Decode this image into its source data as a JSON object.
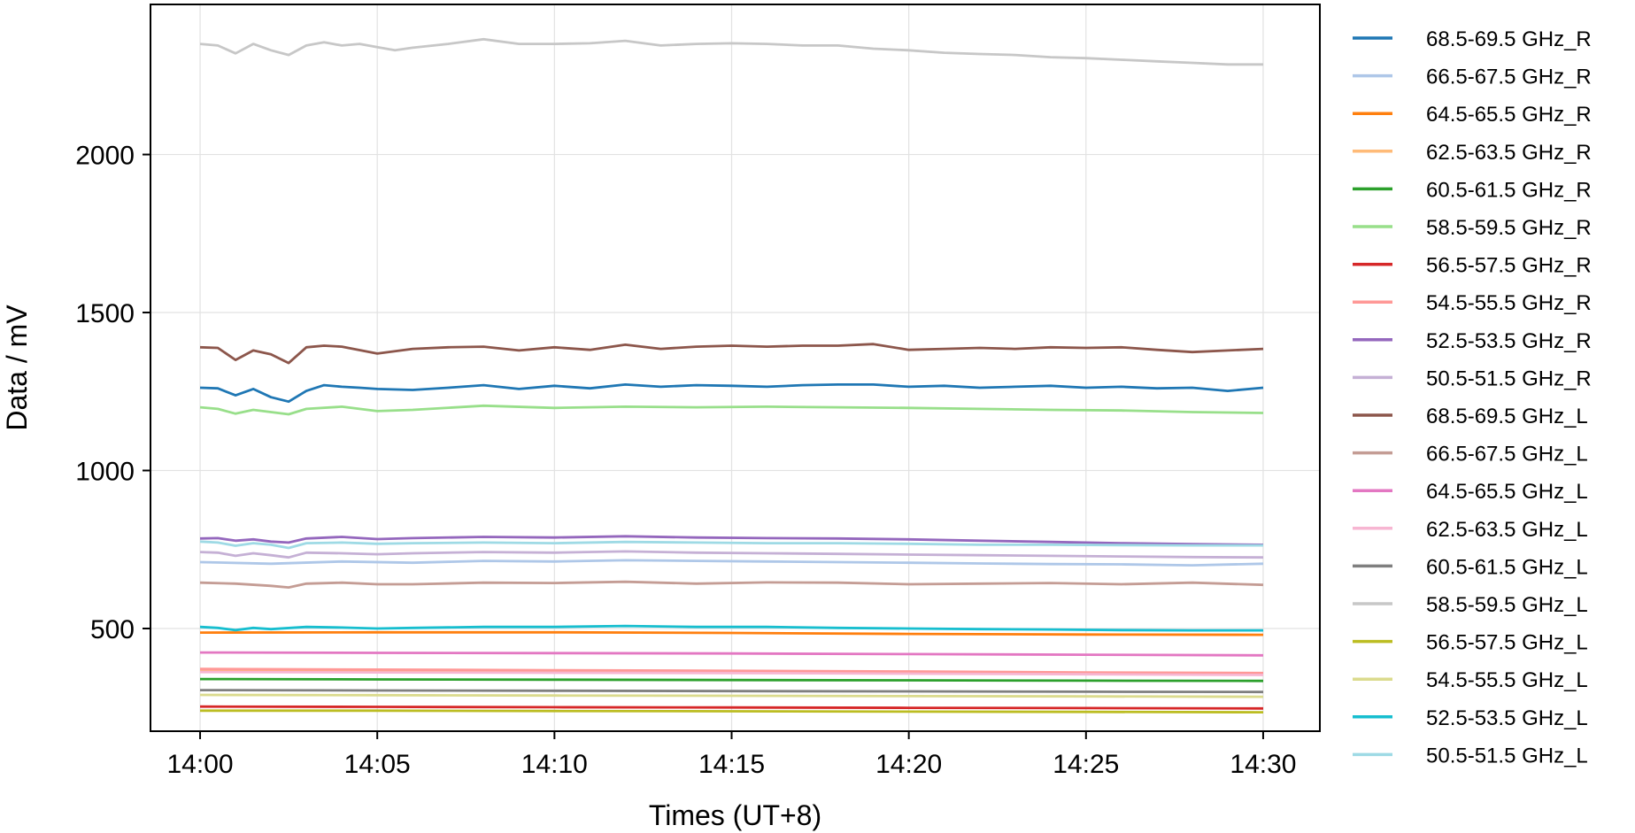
{
  "chart_data": {
    "type": "line",
    "xlabel": "Times (UT+8)",
    "ylabel": "Data / mV",
    "x_ticks": [
      "14:00",
      "14:05",
      "14:10",
      "14:15",
      "14:20",
      "14:25",
      "14:30"
    ],
    "x_tick_minutes": [
      0,
      5,
      10,
      15,
      20,
      25,
      30
    ],
    "xlim": [
      -1.4,
      31.6
    ],
    "y_ticks": [
      500,
      1000,
      1500,
      2000
    ],
    "ylim": [
      175,
      2475
    ],
    "grid": true,
    "legend_position": "outside-right",
    "series": [
      {
        "name": "68.5-69.5 GHz_R",
        "color": "#1f77b4",
        "x": [
          0,
          0.5,
          1,
          1.5,
          2,
          2.5,
          3,
          3.5,
          4,
          4.5,
          5,
          6,
          7,
          8,
          9,
          10,
          11,
          12,
          13,
          14,
          15,
          16,
          17,
          18,
          19,
          20,
          21,
          22,
          23,
          24,
          25,
          26,
          27,
          28,
          29,
          30
        ],
        "y": [
          1262,
          1260,
          1238,
          1258,
          1232,
          1218,
          1252,
          1270,
          1265,
          1262,
          1258,
          1255,
          1262,
          1270,
          1258,
          1268,
          1260,
          1272,
          1265,
          1270,
          1268,
          1265,
          1270,
          1272,
          1272,
          1265,
          1268,
          1262,
          1265,
          1268,
          1262,
          1265,
          1260,
          1262,
          1252,
          1262
        ]
      },
      {
        "name": "66.5-67.5 GHz_R",
        "color": "#aec7e8",
        "x": [
          0,
          2,
          4,
          6,
          8,
          10,
          12,
          14,
          16,
          18,
          20,
          22,
          24,
          26,
          28,
          30
        ],
        "y": [
          710,
          705,
          712,
          708,
          714,
          712,
          716,
          714,
          712,
          710,
          708,
          706,
          704,
          703,
          700,
          705
        ]
      },
      {
        "name": "64.5-65.5 GHz_R",
        "color": "#ff7f0e",
        "x": [
          0,
          5,
          10,
          15,
          20,
          25,
          30
        ],
        "y": [
          487,
          488,
          488,
          486,
          483,
          481,
          480
        ]
      },
      {
        "name": "62.5-63.5 GHz_R",
        "color": "#ffbb78",
        "x": [
          0,
          5,
          10,
          15,
          20,
          25,
          30
        ],
        "y": [
          365,
          364,
          363,
          362,
          360,
          358,
          357
        ]
      },
      {
        "name": "60.5-61.5 GHz_R",
        "color": "#2ca02c",
        "x": [
          0,
          5,
          10,
          15,
          20,
          25,
          30
        ],
        "y": [
          340,
          339,
          338,
          337,
          336,
          335,
          334
        ]
      },
      {
        "name": "58.5-59.5 GHz_R",
        "color": "#98df8a",
        "x": [
          0,
          0.5,
          1,
          1.5,
          2,
          2.5,
          3,
          4,
          5,
          6,
          8,
          10,
          12,
          14,
          16,
          18,
          20,
          22,
          24,
          26,
          28,
          30
        ],
        "y": [
          1200,
          1195,
          1180,
          1192,
          1185,
          1178,
          1195,
          1202,
          1188,
          1192,
          1205,
          1198,
          1202,
          1200,
          1202,
          1200,
          1198,
          1195,
          1192,
          1190,
          1185,
          1182
        ]
      },
      {
        "name": "56.5-57.5 GHz_R",
        "color": "#d62728",
        "x": [
          0,
          5,
          10,
          15,
          20,
          25,
          30
        ],
        "y": [
          253,
          252,
          251,
          250,
          249,
          248,
          247
        ]
      },
      {
        "name": "54.5-55.5 GHz_R",
        "color": "#ff9896",
        "x": [
          0,
          5,
          10,
          15,
          20,
          25,
          30
        ],
        "y": [
          372,
          370,
          368,
          366,
          364,
          361,
          359
        ]
      },
      {
        "name": "52.5-53.5 GHz_R",
        "color": "#9467bd",
        "x": [
          0,
          0.5,
          1,
          1.5,
          2,
          2.5,
          3,
          4,
          5,
          6,
          8,
          10,
          12,
          14,
          16,
          18,
          20,
          22,
          24,
          26,
          28,
          30
        ],
        "y": [
          785,
          786,
          778,
          782,
          775,
          772,
          785,
          790,
          783,
          786,
          790,
          788,
          792,
          788,
          786,
          785,
          782,
          778,
          774,
          770,
          767,
          765
        ]
      },
      {
        "name": "50.5-51.5 GHz_R",
        "color": "#c5b0d5",
        "x": [
          0,
          0.5,
          1,
          1.5,
          2,
          2.5,
          3,
          4,
          5,
          6,
          8,
          10,
          12,
          14,
          16,
          18,
          20,
          22,
          24,
          26,
          28,
          30
        ],
        "y": [
          742,
          740,
          730,
          738,
          732,
          725,
          740,
          738,
          735,
          738,
          742,
          740,
          744,
          740,
          738,
          736,
          734,
          732,
          730,
          728,
          726,
          725
        ]
      },
      {
        "name": "68.5-69.5 GHz_L",
        "color": "#8c564b",
        "x": [
          0,
          0.5,
          1,
          1.5,
          2,
          2.5,
          3,
          3.5,
          4,
          5,
          6,
          7,
          8,
          9,
          10,
          11,
          12,
          13,
          14,
          15,
          16,
          17,
          18,
          19,
          20,
          21,
          22,
          23,
          24,
          25,
          26,
          27,
          28,
          29,
          30
        ],
        "y": [
          1390,
          1388,
          1350,
          1380,
          1368,
          1340,
          1390,
          1395,
          1392,
          1370,
          1385,
          1390,
          1392,
          1380,
          1390,
          1382,
          1398,
          1385,
          1392,
          1395,
          1392,
          1395,
          1395,
          1400,
          1382,
          1385,
          1388,
          1385,
          1390,
          1388,
          1390,
          1382,
          1375,
          1380,
          1385
        ]
      },
      {
        "name": "66.5-67.5 GHz_L",
        "color": "#c49c94",
        "x": [
          0,
          1,
          2,
          2.5,
          3,
          4,
          5,
          6,
          8,
          10,
          12,
          14,
          16,
          18,
          20,
          22,
          24,
          26,
          28,
          30
        ],
        "y": [
          645,
          642,
          635,
          630,
          642,
          645,
          640,
          640,
          645,
          644,
          648,
          642,
          646,
          645,
          640,
          642,
          644,
          640,
          645,
          638
        ]
      },
      {
        "name": "64.5-65.5 GHz_L",
        "color": "#e377c2",
        "x": [
          0,
          5,
          10,
          15,
          20,
          25,
          30
        ],
        "y": [
          424,
          423,
          422,
          421,
          419,
          417,
          415
        ]
      },
      {
        "name": "62.5-63.5 GHz_L",
        "color": "#f7b6d2",
        "x": [
          0,
          5,
          10,
          15,
          20,
          25,
          30
        ],
        "y": [
          362,
          361,
          360,
          359,
          357,
          355,
          353
        ]
      },
      {
        "name": "60.5-61.5 GHz_L",
        "color": "#7f7f7f",
        "x": [
          0,
          5,
          10,
          15,
          20,
          25,
          30
        ],
        "y": [
          305,
          304,
          303,
          302,
          301,
          300,
          299
        ]
      },
      {
        "name": "58.5-59.5 GHz_L",
        "color": "#c7c7c7",
        "x": [
          0,
          0.5,
          1,
          1.5,
          2,
          2.5,
          3,
          3.5,
          4,
          4.5,
          5,
          5.5,
          6,
          7,
          8,
          9,
          10,
          11,
          12,
          13,
          14,
          15,
          16,
          17,
          18,
          19,
          20,
          21,
          22,
          23,
          24,
          25,
          26,
          27,
          28,
          29,
          30
        ],
        "y": [
          2350,
          2345,
          2320,
          2350,
          2330,
          2315,
          2345,
          2355,
          2345,
          2350,
          2340,
          2330,
          2338,
          2350,
          2365,
          2350,
          2350,
          2352,
          2360,
          2345,
          2350,
          2352,
          2350,
          2345,
          2345,
          2335,
          2330,
          2322,
          2318,
          2315,
          2308,
          2305,
          2300,
          2295,
          2290,
          2285,
          2285
        ]
      },
      {
        "name": "56.5-57.5 GHz_L",
        "color": "#bcbd22",
        "x": [
          0,
          5,
          10,
          15,
          20,
          25,
          30
        ],
        "y": [
          240,
          240,
          239,
          238,
          237,
          236,
          235
        ]
      },
      {
        "name": "54.5-55.5 GHz_L",
        "color": "#dbdb8d",
        "x": [
          0,
          5,
          10,
          15,
          20,
          25,
          30
        ],
        "y": [
          290,
          289,
          288,
          287,
          286,
          285,
          284
        ]
      },
      {
        "name": "52.5-53.5 GHz_L",
        "color": "#17becf",
        "x": [
          0,
          0.5,
          1,
          1.5,
          2,
          3,
          4,
          5,
          6,
          8,
          10,
          12,
          14,
          16,
          18,
          20,
          22,
          24,
          26,
          28,
          30
        ],
        "y": [
          505,
          502,
          495,
          502,
          498,
          505,
          503,
          500,
          502,
          505,
          505,
          508,
          505,
          505,
          502,
          500,
          498,
          497,
          495,
          494,
          494
        ]
      },
      {
        "name": "50.5-51.5 GHz_L",
        "color": "#9edae5",
        "x": [
          0,
          0.5,
          1,
          1.5,
          2,
          2.5,
          3,
          4,
          5,
          6,
          8,
          10,
          12,
          14,
          16,
          18,
          20,
          22,
          24,
          26,
          28,
          30
        ],
        "y": [
          775,
          772,
          762,
          770,
          765,
          755,
          770,
          772,
          768,
          770,
          772,
          770,
          774,
          772,
          770,
          770,
          768,
          765,
          765,
          764,
          763,
          763
        ]
      }
    ]
  }
}
